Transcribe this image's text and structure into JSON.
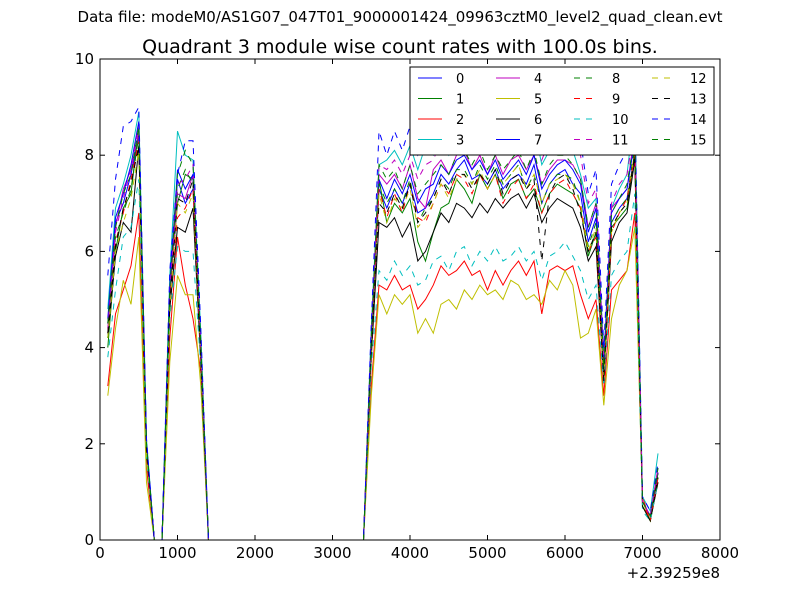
{
  "suptitle": "Data file: modeM0/AS1G07_047T01_9000001424_09963cztM0_level2_quad_clean.evt",
  "chart_data": {
    "type": "line",
    "title": "Quadrant 3 module wise count rates with 100.0s bins.",
    "xlabel": "",
    "ylabel": "",
    "x_offset_label": "+2.39259e8",
    "xlim": [
      0,
      8000
    ],
    "ylim": [
      0,
      10
    ],
    "xticks": [
      0,
      1000,
      2000,
      3000,
      4000,
      5000,
      6000,
      7000,
      8000
    ],
    "yticks": [
      0,
      2,
      4,
      6,
      8,
      10
    ],
    "grid": false,
    "legend_position": "top-right",
    "x": [
      100,
      200,
      300,
      400,
      500,
      600,
      700,
      800,
      900,
      1000,
      1100,
      1200,
      1300,
      1400,
      1500,
      3400,
      3500,
      3600,
      3700,
      3800,
      3900,
      4000,
      4100,
      4200,
      4300,
      4400,
      4500,
      4600,
      4700,
      4800,
      4900,
      5000,
      5100,
      5200,
      5300,
      5400,
      5500,
      5600,
      5700,
      5800,
      5900,
      6000,
      6100,
      6200,
      6300,
      6400,
      6500,
      6600,
      6700,
      6800,
      6900,
      7000,
      7100,
      7200
    ],
    "series": [
      {
        "name": "0",
        "color": "#0000ff",
        "dash": "solid",
        "values": [
          4.5,
          6.6,
          7.0,
          7.6,
          8.4,
          2.0,
          0,
          0,
          5.0,
          7.5,
          7.0,
          7.3,
          4.0,
          0,
          0,
          0,
          4.0,
          7.3,
          6.9,
          7.3,
          7.0,
          7.4,
          6.8,
          6.9,
          7.2,
          7.6,
          7.4,
          7.7,
          7.9,
          7.5,
          7.6,
          7.4,
          7.7,
          7.3,
          7.5,
          7.6,
          7.4,
          7.8,
          7.0,
          7.4,
          7.6,
          7.7,
          7.4,
          7.2,
          6.2,
          6.7,
          3.5,
          6.6,
          6.9,
          7.1,
          8.0,
          0.8,
          0.5,
          1.4
        ]
      },
      {
        "name": "1",
        "color": "#008000",
        "dash": "solid",
        "values": [
          4.0,
          6.0,
          6.9,
          7.2,
          8.6,
          2.0,
          0,
          0,
          5.2,
          7.0,
          7.6,
          7.5,
          4.0,
          0,
          0,
          0,
          4.3,
          7.5,
          6.6,
          7.0,
          6.8,
          7.1,
          6.2,
          5.8,
          6.4,
          6.9,
          7.0,
          7.5,
          7.3,
          7.0,
          7.6,
          7.3,
          7.6,
          7.1,
          7.4,
          7.5,
          7.1,
          7.3,
          6.8,
          7.2,
          7.4,
          7.3,
          7.2,
          6.9,
          5.9,
          6.4,
          3.4,
          6.5,
          6.7,
          6.9,
          8.1,
          0.7,
          0.4,
          1.3
        ]
      },
      {
        "name": "2",
        "color": "#ff0000",
        "dash": "solid",
        "values": [
          3.2,
          4.7,
          5.2,
          5.7,
          6.8,
          1.5,
          0,
          0,
          4.2,
          6.3,
          5.3,
          4.6,
          3.5,
          0,
          0,
          0,
          3.2,
          5.3,
          5.2,
          5.5,
          5.2,
          5.3,
          4.8,
          5.0,
          5.3,
          5.7,
          5.5,
          5.6,
          5.8,
          5.5,
          5.6,
          5.2,
          5.6,
          5.3,
          5.6,
          5.8,
          5.5,
          5.8,
          4.7,
          5.6,
          5.7,
          5.6,
          5.7,
          5.1,
          4.6,
          5.0,
          3.0,
          5.2,
          5.4,
          5.6,
          6.8,
          0.9,
          0.4,
          1.4
        ]
      },
      {
        "name": "3",
        "color": "#00bfbf",
        "dash": "solid",
        "values": [
          4.8,
          6.9,
          7.4,
          8.0,
          8.9,
          2.1,
          0,
          0,
          5.5,
          8.5,
          8.0,
          7.9,
          4.3,
          0,
          0,
          0,
          4.4,
          7.8,
          7.9,
          8.1,
          7.8,
          8.2,
          7.7,
          8.2,
          8.0,
          8.3,
          8.0,
          8.4,
          8.6,
          8.2,
          8.6,
          8.2,
          8.5,
          8.1,
          8.3,
          8.5,
          8.1,
          8.6,
          7.8,
          8.1,
          8.4,
          8.5,
          8.1,
          7.6,
          6.9,
          7.1,
          3.8,
          6.9,
          7.3,
          7.6,
          9.0,
          0.9,
          0.6,
          1.8
        ]
      },
      {
        "name": "4",
        "color": "#bf00bf",
        "dash": "solid",
        "values": [
          4.5,
          6.5,
          7.3,
          7.7,
          8.5,
          2.0,
          0,
          0,
          5.1,
          7.2,
          7.1,
          7.6,
          4.1,
          0,
          0,
          0,
          4.2,
          7.6,
          7.4,
          7.6,
          7.3,
          7.8,
          7.1,
          6.9,
          7.7,
          7.9,
          7.6,
          8.0,
          8.1,
          7.7,
          8.0,
          7.6,
          8.0,
          7.6,
          7.9,
          8.0,
          7.7,
          8.0,
          7.4,
          7.7,
          7.9,
          7.9,
          7.8,
          7.5,
          6.5,
          7.0,
          3.6,
          6.9,
          7.1,
          7.3,
          8.5,
          0.8,
          0.5,
          1.5
        ]
      },
      {
        "name": "5",
        "color": "#bfbf00",
        "dash": "solid",
        "values": [
          3.0,
          4.4,
          5.4,
          4.9,
          6.3,
          1.2,
          0,
          0,
          3.7,
          5.5,
          5.1,
          5.1,
          3.2,
          0,
          0,
          0,
          3.0,
          5.1,
          4.7,
          5.1,
          4.9,
          5.1,
          4.3,
          4.6,
          4.3,
          4.9,
          5.0,
          4.8,
          5.2,
          5.0,
          5.3,
          5.1,
          5.2,
          5.0,
          5.4,
          5.3,
          5.0,
          5.1,
          4.9,
          5.4,
          5.2,
          5.6,
          5.3,
          4.2,
          4.3,
          4.8,
          2.8,
          4.6,
          5.3,
          5.6,
          6.5,
          0.8,
          0.4,
          1.2
        ]
      },
      {
        "name": "6",
        "color": "#000000",
        "dash": "solid",
        "values": [
          4.2,
          5.9,
          6.6,
          6.4,
          8.2,
          1.8,
          0,
          0,
          4.8,
          6.5,
          6.4,
          6.9,
          3.7,
          0,
          0,
          0,
          3.8,
          6.6,
          6.5,
          6.7,
          6.3,
          6.6,
          5.8,
          6.0,
          6.4,
          6.8,
          6.6,
          7.0,
          6.9,
          6.7,
          7.0,
          6.8,
          7.1,
          6.9,
          7.1,
          7.2,
          6.9,
          7.2,
          6.6,
          6.9,
          7.1,
          7.0,
          6.9,
          6.5,
          5.8,
          6.1,
          3.3,
          6.2,
          6.6,
          6.8,
          7.9,
          0.7,
          0.4,
          1.2
        ]
      },
      {
        "name": "7",
        "color": "#0000ff",
        "dash": "solid",
        "values": [
          4.6,
          6.7,
          7.2,
          7.8,
          8.7,
          2.0,
          0,
          0,
          5.3,
          7.7,
          7.3,
          7.6,
          4.1,
          0,
          0,
          0,
          4.1,
          7.5,
          7.1,
          7.5,
          7.2,
          7.6,
          7.0,
          7.3,
          7.4,
          7.8,
          7.6,
          7.9,
          8.0,
          7.7,
          7.9,
          7.6,
          7.9,
          7.5,
          7.7,
          7.9,
          7.6,
          8.0,
          7.3,
          7.6,
          7.8,
          7.9,
          7.7,
          7.4,
          6.4,
          6.9,
          3.6,
          6.8,
          7.1,
          7.3,
          8.3,
          0.8,
          0.5,
          1.4
        ]
      },
      {
        "name": "8",
        "color": "#008000",
        "dash": "dashed",
        "values": [
          4.2,
          6.3,
          6.8,
          7.3,
          8.4,
          1.9,
          0,
          0,
          4.9,
          7.3,
          7.7,
          7.4,
          3.9,
          0,
          0,
          0,
          4.1,
          7.4,
          7.0,
          7.3,
          7.0,
          7.5,
          6.6,
          6.9,
          7.1,
          7.5,
          7.3,
          7.7,
          7.7,
          7.4,
          7.8,
          7.5,
          7.8,
          7.4,
          7.6,
          7.8,
          7.3,
          7.6,
          7.0,
          7.4,
          7.6,
          7.6,
          7.5,
          7.0,
          6.1,
          6.6,
          3.4,
          6.6,
          6.9,
          7.1,
          8.2,
          0.7,
          0.4,
          1.4
        ]
      },
      {
        "name": "9",
        "color": "#ff0000",
        "dash": "dashed",
        "values": [
          4.3,
          6.2,
          6.8,
          7.5,
          8.3,
          1.9,
          0,
          0,
          5.0,
          6.7,
          6.9,
          7.3,
          3.9,
          0,
          0,
          0,
          4.1,
          7.3,
          6.7,
          7.2,
          6.8,
          7.4,
          6.7,
          6.6,
          7.0,
          7.4,
          7.2,
          7.6,
          7.5,
          7.2,
          7.6,
          7.3,
          7.6,
          7.0,
          7.3,
          7.5,
          7.1,
          7.4,
          6.8,
          7.2,
          7.4,
          7.5,
          7.2,
          6.9,
          6.0,
          6.3,
          3.2,
          6.4,
          6.8,
          7.1,
          8.0,
          0.8,
          0.4,
          1.3
        ]
      },
      {
        "name": "10",
        "color": "#00bfbf",
        "dash": "dashed",
        "values": [
          3.8,
          5.2,
          6.3,
          6.5,
          7.5,
          1.7,
          0,
          0,
          4.6,
          6.1,
          6.0,
          6.0,
          3.6,
          0,
          0,
          0,
          3.6,
          5.6,
          5.4,
          5.8,
          5.5,
          5.7,
          5.3,
          5.4,
          5.8,
          5.9,
          5.6,
          6.0,
          6.1,
          5.7,
          6.0,
          5.8,
          6.1,
          5.8,
          5.9,
          6.1,
          5.8,
          6.0,
          5.4,
          5.9,
          6.0,
          6.2,
          5.9,
          5.6,
          5.0,
          5.3,
          3.2,
          5.5,
          5.8,
          6.0,
          7.2,
          0.6,
          0.4,
          1.2
        ]
      },
      {
        "name": "11",
        "color": "#bf00bf",
        "dash": "dashed",
        "values": [
          4.4,
          6.4,
          7.1,
          7.7,
          8.6,
          2.0,
          0,
          0,
          5.2,
          7.4,
          7.5,
          7.8,
          4.0,
          0,
          0,
          0,
          4.3,
          7.8,
          7.7,
          7.9,
          7.6,
          8.0,
          7.5,
          7.8,
          7.9,
          8.3,
          8.0,
          8.4,
          8.5,
          8.2,
          8.6,
          8.3,
          8.6,
          8.2,
          8.4,
          8.6,
          8.2,
          8.7,
          7.9,
          8.3,
          8.5,
          8.6,
          8.3,
          8.0,
          7.0,
          7.3,
          3.7,
          7.0,
          7.4,
          7.6,
          8.6,
          0.8,
          0.5,
          1.5
        ]
      },
      {
        "name": "12",
        "color": "#bfbf00",
        "dash": "dashed",
        "values": [
          4.2,
          6.0,
          6.6,
          7.1,
          8.1,
          1.8,
          0,
          0,
          4.8,
          7.0,
          6.8,
          7.2,
          3.8,
          0,
          0,
          0,
          3.9,
          7.2,
          6.6,
          7.1,
          6.9,
          7.3,
          6.5,
          6.7,
          7.0,
          7.4,
          7.1,
          7.5,
          7.6,
          7.4,
          7.7,
          7.3,
          7.6,
          7.4,
          7.6,
          7.8,
          7.3,
          7.6,
          7.0,
          7.4,
          7.5,
          7.6,
          7.4,
          7.0,
          6.0,
          6.5,
          3.3,
          6.4,
          6.8,
          7.0,
          8.1,
          0.7,
          0.4,
          1.3
        ]
      },
      {
        "name": "13",
        "color": "#000000",
        "dash": "dashed",
        "values": [
          4.3,
          6.1,
          6.9,
          7.4,
          8.2,
          1.9,
          0,
          0,
          4.9,
          7.1,
          7.0,
          7.5,
          3.8,
          0,
          0,
          0,
          4.0,
          7.0,
          6.8,
          7.2,
          6.9,
          7.4,
          6.6,
          6.8,
          7.1,
          7.5,
          7.2,
          7.6,
          7.6,
          7.3,
          7.6,
          7.4,
          7.7,
          7.2,
          7.5,
          7.6,
          7.3,
          7.5,
          5.8,
          7.2,
          7.5,
          7.6,
          7.3,
          6.8,
          6.0,
          6.4,
          3.3,
          6.5,
          6.8,
          7.0,
          8.0,
          0.7,
          0.4,
          1.3
        ]
      },
      {
        "name": "14",
        "color": "#0000ff",
        "dash": "dashed",
        "values": [
          5.5,
          7.5,
          8.6,
          8.7,
          9.0,
          2.1,
          0,
          0,
          5.6,
          7.6,
          8.3,
          8.3,
          4.4,
          0,
          0,
          0,
          4.5,
          8.5,
          8.0,
          8.5,
          8.1,
          8.6,
          8.0,
          8.3,
          8.4,
          8.8,
          8.5,
          8.9,
          9.1,
          8.6,
          8.9,
          8.6,
          8.8,
          8.5,
          8.7,
          8.9,
          8.5,
          8.9,
          8.2,
          8.6,
          8.8,
          8.9,
          8.6,
          8.3,
          7.2,
          7.7,
          4.0,
          7.4,
          7.8,
          8.1,
          9.0,
          0.9,
          0.6,
          1.6
        ]
      },
      {
        "name": "15",
        "color": "#008000",
        "dash": "dashed",
        "values": [
          4.5,
          6.5,
          7.2,
          7.6,
          8.6,
          2.0,
          0,
          0,
          5.2,
          7.6,
          8.1,
          7.8,
          4.1,
          0,
          0,
          0,
          4.2,
          7.8,
          7.5,
          7.7,
          7.3,
          7.8,
          7.2,
          7.4,
          7.6,
          7.8,
          7.6,
          8.0,
          8.1,
          7.8,
          8.1,
          7.7,
          8.0,
          7.7,
          7.9,
          8.1,
          7.7,
          8.1,
          7.4,
          7.8,
          8.0,
          8.0,
          7.8,
          7.5,
          6.5,
          7.0,
          3.6,
          6.8,
          7.1,
          7.4,
          8.4,
          0.8,
          0.5,
          1.5
        ]
      }
    ]
  }
}
